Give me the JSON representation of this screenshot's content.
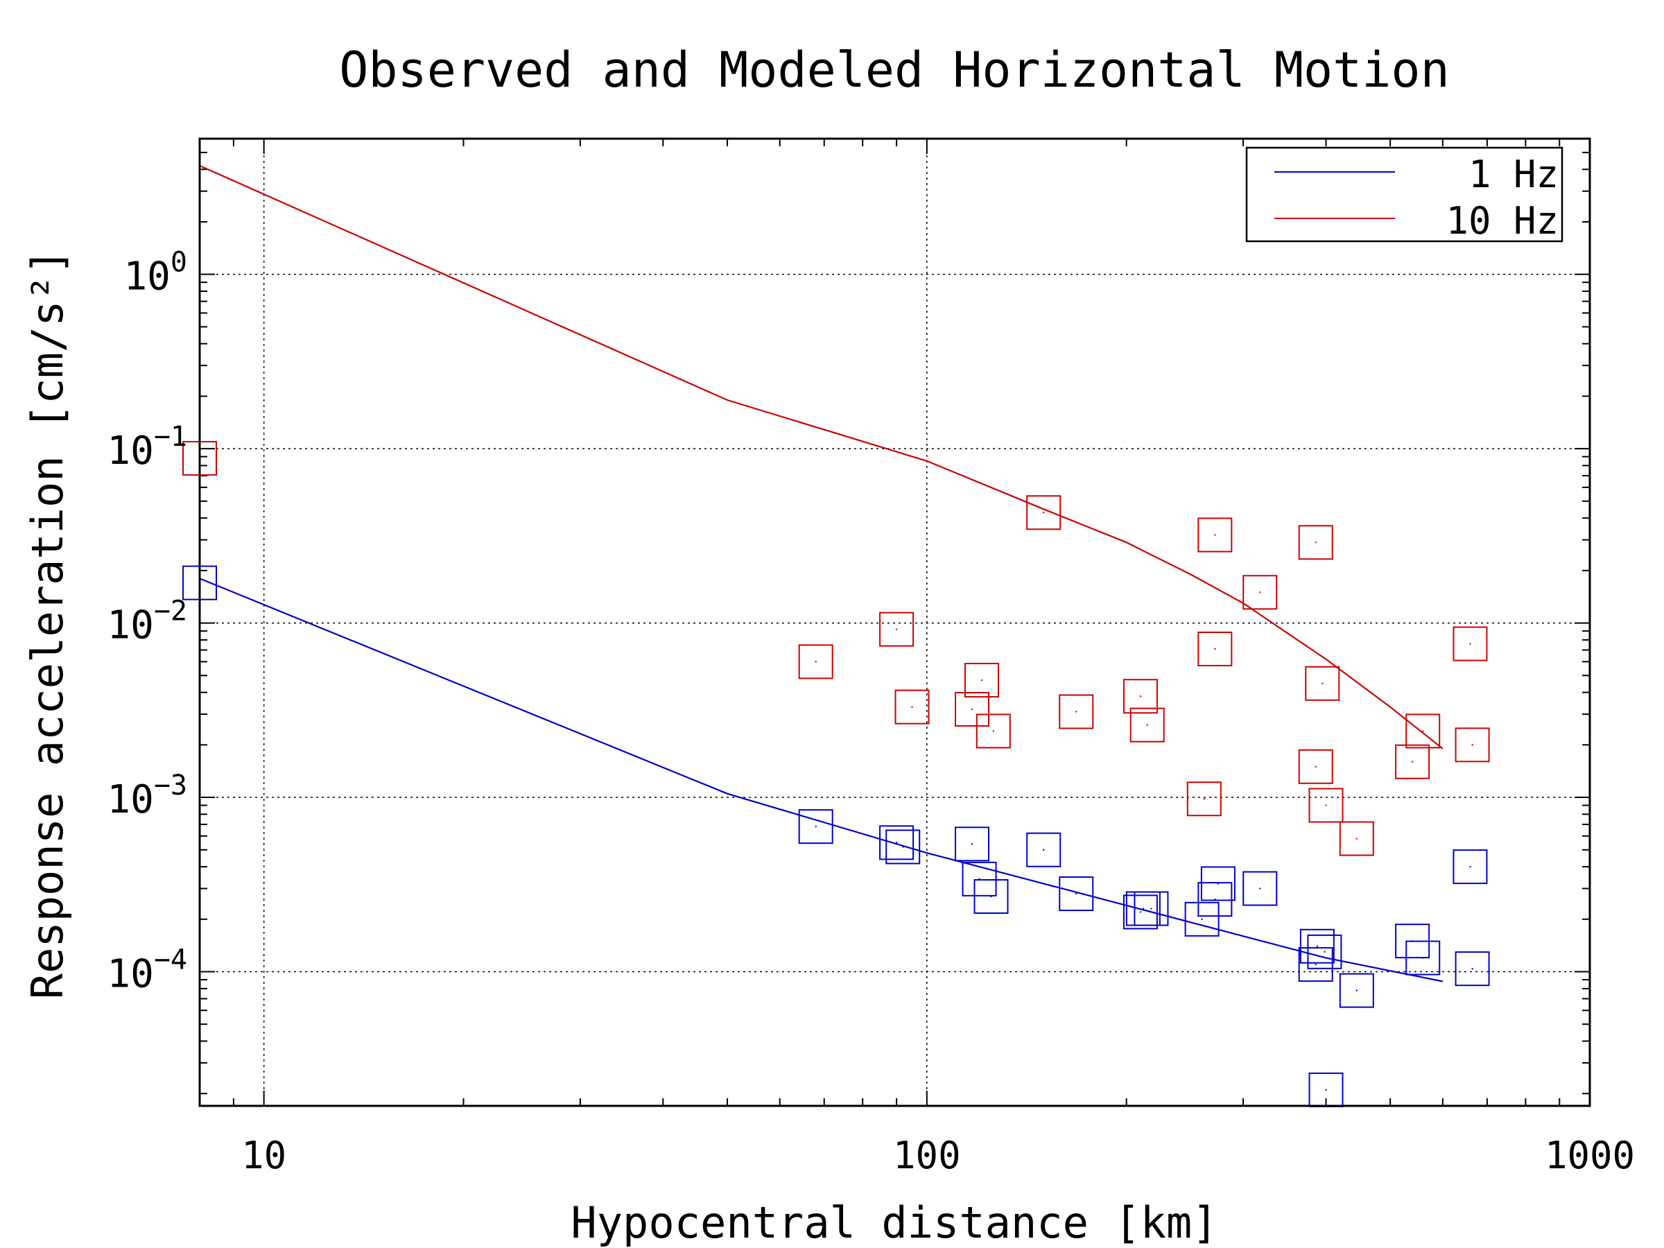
{
  "chart_data": {
    "type": "scatter",
    "title": "Observed and Modeled Horizontal Motion",
    "xlabel": "Hypocentral distance [km]",
    "ylabel": "Response acceleration [cm/s²]",
    "x_scale": "log",
    "y_scale": "log",
    "xlim": [
      8,
      1000
    ],
    "ylim": [
      1.7e-05,
      6
    ],
    "grid": true,
    "legend_position": "top-right",
    "x_ticks": [
      {
        "value": 10,
        "label": "10"
      },
      {
        "value": 100,
        "label": "100"
      },
      {
        "value": 1000,
        "label": "1000"
      }
    ],
    "y_ticks": [
      {
        "value": 1,
        "base": "10",
        "exp": "0"
      },
      {
        "value": 0.1,
        "base": "10",
        "exp": "−1"
      },
      {
        "value": 0.01,
        "base": "10",
        "exp": "−2"
      },
      {
        "value": 0.001,
        "base": "10",
        "exp": "−3"
      },
      {
        "value": 0.0001,
        "base": "10",
        "exp": "−4"
      }
    ],
    "series": [
      {
        "name": "1 Hz",
        "color": "#0000cc",
        "model_line": {
          "x": [
            8,
            50,
            100,
            200,
            300,
            400,
            600
          ],
          "y": [
            0.018,
            0.00105,
            0.00048,
            0.00024,
            0.00016,
            0.00012,
            8.8e-05
          ]
        },
        "observed": {
          "x": [
            8,
            68,
            90,
            92,
            117,
            120,
            125,
            150,
            168,
            210,
            212,
            218,
            260,
            272,
            275,
            318,
            386,
            388,
            398,
            400,
            445,
            540,
            560,
            660,
            665
          ],
          "y": [
            0.017,
            0.00068,
            0.00055,
            0.00052,
            0.00054,
            0.00034,
            0.00027,
            0.0005,
            0.00028,
            0.00022,
            0.00023,
            0.00023,
            0.0002,
            0.00026,
            0.00032,
            0.0003,
            0.00011,
            0.00014,
            0.00013,
            2.1e-05,
            7.8e-05,
            0.00015,
            0.00012,
            0.0004,
            0.000104
          ]
        }
      },
      {
        "name": "10 Hz",
        "color": "#cc0000",
        "model_line": {
          "x": [
            8,
            50,
            100,
            150,
            200,
            250,
            300,
            400,
            500,
            600
          ],
          "y": [
            4.2,
            0.19,
            0.085,
            0.045,
            0.029,
            0.019,
            0.013,
            0.0062,
            0.0033,
            0.0019
          ]
        },
        "observed": {
          "x": [
            8,
            68,
            90,
            95,
            117,
            121,
            126,
            150,
            168,
            210,
            215,
            262,
            272,
            272,
            318,
            386,
            386,
            395,
            400,
            445,
            540,
            560,
            660,
            665
          ],
          "y": [
            0.088,
            0.006,
            0.0092,
            0.0033,
            0.0032,
            0.0047,
            0.0024,
            0.043,
            0.0031,
            0.0038,
            0.0026,
            0.00098,
            0.0071,
            0.032,
            0.015,
            0.029,
            0.0015,
            0.0045,
            0.0009,
            0.00058,
            0.0016,
            0.0024,
            0.0076,
            0.002
          ]
        }
      }
    ]
  }
}
